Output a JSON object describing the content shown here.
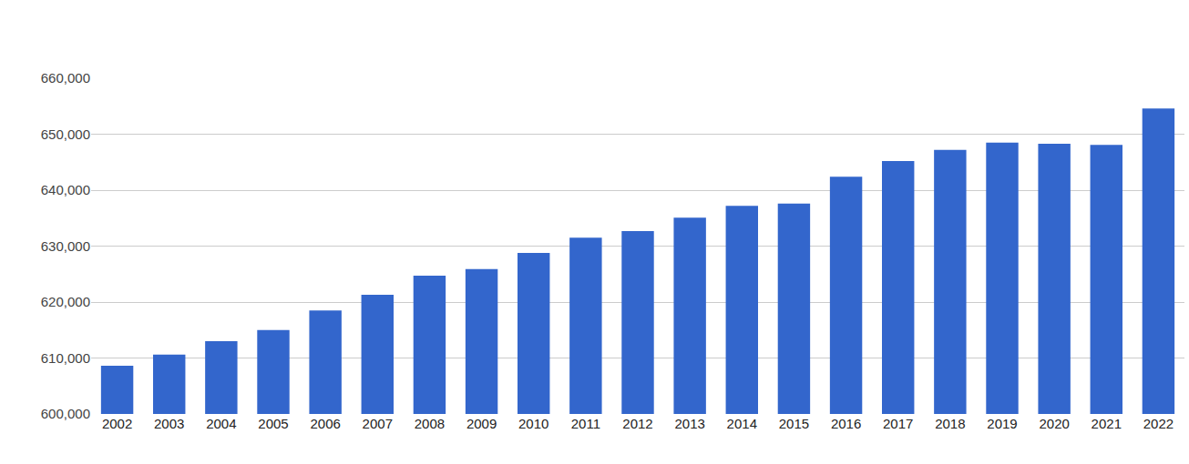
{
  "chart_data": {
    "type": "bar",
    "categories": [
      "2002",
      "2003",
      "2004",
      "2005",
      "2006",
      "2007",
      "2008",
      "2009",
      "2010",
      "2011",
      "2012",
      "2013",
      "2014",
      "2015",
      "2016",
      "2017",
      "2018",
      "2019",
      "2020",
      "2021",
      "2022"
    ],
    "values": [
      608600,
      610600,
      613000,
      615000,
      618500,
      621300,
      624700,
      625900,
      628800,
      631500,
      632700,
      635100,
      637200,
      637600,
      642400,
      645200,
      647200,
      648500,
      648300,
      648100,
      654600
    ],
    "color": "#3366cc",
    "ylim": [
      600000,
      660000
    ],
    "yticks": [
      {
        "value": 600000,
        "label": "600,000"
      },
      {
        "value": 610000,
        "label": "610,000"
      },
      {
        "value": 620000,
        "label": "620,000"
      },
      {
        "value": 630000,
        "label": "630,000"
      },
      {
        "value": 640000,
        "label": "640,000"
      },
      {
        "value": 650000,
        "label": "650,000"
      },
      {
        "value": 660000,
        "label": "660,000"
      }
    ],
    "grid": true
  }
}
